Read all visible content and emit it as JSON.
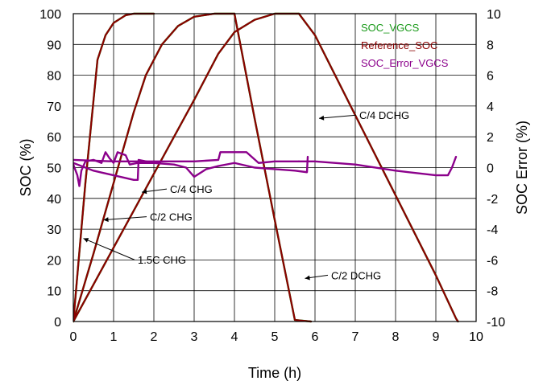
{
  "chart_data": {
    "type": "line",
    "xlabel": "Time (h)",
    "ylabel": "SOC (%)",
    "y2label": "SOC Error (%)",
    "xlim": [
      0,
      10
    ],
    "ylim": [
      0,
      100
    ],
    "y2lim": [
      -10,
      10
    ],
    "xticks": [
      "0",
      "1",
      "2",
      "3",
      "4",
      "5",
      "6",
      "7",
      "8",
      "9",
      "10"
    ],
    "yticks": [
      "0",
      "10",
      "20",
      "30",
      "40",
      "50",
      "60",
      "70",
      "80",
      "90",
      "100"
    ],
    "y2ticks": [
      "-10",
      "-8",
      "-6",
      "-4",
      "-2",
      "0",
      "2",
      "4",
      "6",
      "8",
      "10"
    ],
    "grid": true,
    "legend_position": "top-right",
    "legend": [
      {
        "name": "SOC_VGCS",
        "color": "#1a9a1a"
      },
      {
        "name": "Reference_SOC",
        "color": "#8b0000"
      },
      {
        "name": "SOC_Error_VGCS",
        "color": "#8b008b"
      }
    ],
    "series": [
      {
        "name": "SOC_VGCS",
        "axis": "left",
        "color": "#1a9a1a",
        "segments": [
          [
            [
              0,
              0
            ],
            [
              0.3,
              45
            ],
            [
              0.6,
              85
            ],
            [
              0.8,
              93
            ],
            [
              1.0,
              97
            ],
            [
              1.3,
              99.5
            ],
            [
              1.5,
              100
            ],
            [
              2.0,
              100
            ]
          ],
          [
            [
              0,
              0
            ],
            [
              0.5,
              22
            ],
            [
              1.0,
              45
            ],
            [
              1.5,
              68
            ],
            [
              1.8,
              80
            ],
            [
              2.2,
              90
            ],
            [
              2.6,
              96
            ],
            [
              3.0,
              99
            ],
            [
              3.5,
              100
            ],
            [
              4.0,
              100
            ]
          ],
          [
            [
              0,
              0
            ],
            [
              1,
              24
            ],
            [
              2,
              48
            ],
            [
              3,
              72
            ],
            [
              3.6,
              87
            ],
            [
              4.0,
              94
            ],
            [
              4.5,
              98
            ],
            [
              5.0,
              100
            ],
            [
              5.6,
              100
            ]
          ],
          [
            [
              4.0,
              100
            ],
            [
              4.5,
              66
            ],
            [
              5.0,
              33
            ],
            [
              5.5,
              0.5
            ],
            [
              5.9,
              0
            ]
          ],
          [
            [
              5.6,
              100
            ],
            [
              6,
              93
            ],
            [
              7,
              67
            ],
            [
              8,
              41
            ],
            [
              9,
              15
            ],
            [
              9.5,
              1
            ],
            [
              9.55,
              0
            ]
          ]
        ]
      },
      {
        "name": "Reference_SOC",
        "axis": "left",
        "color": "#8b0000",
        "segments": [
          [
            [
              0,
              0
            ],
            [
              0.3,
              45
            ],
            [
              0.6,
              85
            ],
            [
              0.8,
              93
            ],
            [
              1.0,
              97
            ],
            [
              1.3,
              99.5
            ],
            [
              1.5,
              100
            ],
            [
              2.0,
              100
            ]
          ],
          [
            [
              0,
              0
            ],
            [
              0.5,
              22
            ],
            [
              1.0,
              45
            ],
            [
              1.5,
              68
            ],
            [
              1.8,
              80
            ],
            [
              2.2,
              90
            ],
            [
              2.6,
              96
            ],
            [
              3.0,
              99
            ],
            [
              3.5,
              100
            ],
            [
              4.0,
              100
            ]
          ],
          [
            [
              0,
              0
            ],
            [
              1,
              24
            ],
            [
              2,
              48
            ],
            [
              3,
              72
            ],
            [
              3.6,
              87
            ],
            [
              4.0,
              94
            ],
            [
              4.5,
              98
            ],
            [
              5.0,
              100
            ],
            [
              5.6,
              100
            ]
          ],
          [
            [
              4.0,
              100
            ],
            [
              4.5,
              66
            ],
            [
              5.0,
              33
            ],
            [
              5.5,
              0.5
            ],
            [
              5.9,
              0
            ]
          ],
          [
            [
              5.6,
              100
            ],
            [
              6,
              93
            ],
            [
              7,
              67
            ],
            [
              8,
              41
            ],
            [
              9,
              15
            ],
            [
              9.5,
              1
            ],
            [
              9.55,
              0
            ]
          ]
        ]
      },
      {
        "name": "SOC_Error_VGCS",
        "axis": "right",
        "color": "#8b008b",
        "segments": [
          [
            [
              0,
              0.2
            ],
            [
              0.1,
              -0.5
            ],
            [
              0.15,
              -1.2
            ],
            [
              0.2,
              -0.2
            ],
            [
              0.3,
              0.4
            ],
            [
              0.5,
              0.5
            ],
            [
              0.7,
              0.3
            ],
            [
              0.8,
              1.0
            ],
            [
              0.9,
              0.6
            ],
            [
              1.0,
              0.3
            ],
            [
              1.1,
              1.0
            ],
            [
              1.3,
              0.8
            ],
            [
              1.4,
              0.2
            ],
            [
              1.6,
              0.3
            ],
            [
              2.0,
              0.3
            ]
          ],
          [
            [
              0,
              0.3
            ],
            [
              0.5,
              -0.2
            ],
            [
              1.0,
              -0.5
            ],
            [
              1.5,
              -0.8
            ],
            [
              1.6,
              -0.8
            ],
            [
              1.62,
              0.5
            ],
            [
              2.0,
              0.3
            ],
            [
              2.5,
              0.2
            ],
            [
              2.8,
              0.0
            ],
            [
              3.0,
              -0.6
            ],
            [
              3.3,
              -0.1
            ],
            [
              3.6,
              0.1
            ],
            [
              4.0,
              0.3
            ]
          ],
          [
            [
              0,
              0.5
            ],
            [
              1,
              0.4
            ],
            [
              2,
              0.4
            ],
            [
              3,
              0.4
            ],
            [
              3.6,
              0.5
            ],
            [
              3.65,
              1.0
            ],
            [
              4.0,
              1.0
            ],
            [
              4.3,
              1.0
            ],
            [
              4.6,
              0.3
            ],
            [
              5.0,
              0.4
            ],
            [
              5.6,
              0.4
            ]
          ],
          [
            [
              4.0,
              0.3
            ],
            [
              4.5,
              0.0
            ],
            [
              5.0,
              -0.1
            ],
            [
              5.5,
              -0.2
            ],
            [
              5.8,
              -0.3
            ],
            [
              5.82,
              0.7
            ]
          ],
          [
            [
              5.6,
              0.4
            ],
            [
              6,
              0.4
            ],
            [
              7,
              0.2
            ],
            [
              8,
              -0.2
            ],
            [
              9,
              -0.5
            ],
            [
              9.3,
              -0.5
            ],
            [
              9.4,
              0.0
            ],
            [
              9.5,
              0.7
            ]
          ]
        ]
      }
    ],
    "annotations": [
      {
        "text": "C/4 DCHG",
        "x": 7.1,
        "y": 66,
        "arrow_to": [
          6.1,
          66
        ]
      },
      {
        "text": "C/4 CHG",
        "x": 2.4,
        "y": 42,
        "arrow_to": [
          1.7,
          42
        ]
      },
      {
        "text": "C/2 CHG",
        "x": 1.9,
        "y": 33,
        "arrow_to": [
          0.75,
          33
        ]
      },
      {
        "text": "1.5C CHG",
        "x": 1.6,
        "y": 19,
        "arrow_to": [
          0.25,
          27
        ]
      },
      {
        "text": "C/2 DCHG",
        "x": 6.4,
        "y": 14,
        "arrow_to": [
          5.75,
          14
        ]
      }
    ]
  }
}
